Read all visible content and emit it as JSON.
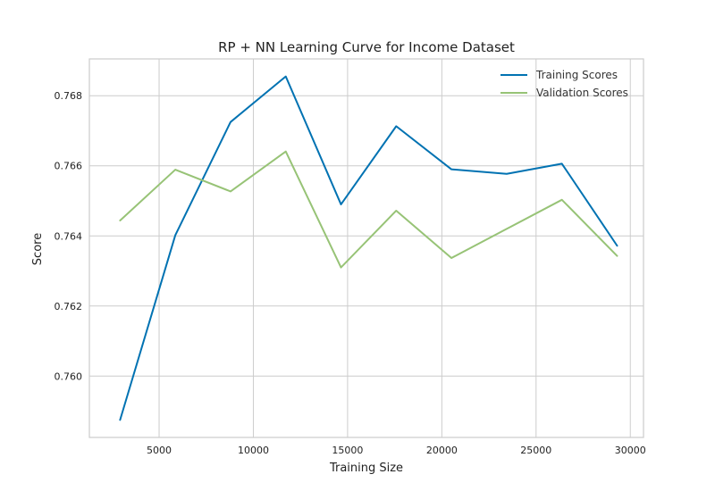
{
  "chart_data": {
    "type": "line",
    "title": "RP + NN Learning Curve for Income Dataset",
    "xlabel": "Training Size",
    "ylabel": "Score",
    "xlim": [
      1300,
      30700
    ],
    "ylim": [
      0.75825,
      0.76905
    ],
    "x_ticks": [
      5000,
      10000,
      15000,
      20000,
      25000,
      30000
    ],
    "y_ticks": [
      0.76,
      0.762,
      0.764,
      0.766,
      0.768
    ],
    "y_tick_decimals": 3,
    "grid": true,
    "legend_position": "top-right",
    "x": [
      2930,
      5860,
      8790,
      11720,
      14650,
      17580,
      20510,
      23440,
      26370,
      29300
    ],
    "series": [
      {
        "name": "Training Scores",
        "color": "#0072B2",
        "values": [
          0.75875,
          0.76402,
          0.76725,
          0.76855,
          0.7649,
          0.76713,
          0.7659,
          0.76577,
          0.76606,
          0.76372
        ]
      },
      {
        "name": "Validation Scores",
        "color": "#97C376",
        "values": [
          0.76444,
          0.76589,
          0.76527,
          0.76641,
          0.7631,
          0.76472,
          0.76337,
          0.7642,
          0.76503,
          0.76343
        ]
      }
    ]
  }
}
